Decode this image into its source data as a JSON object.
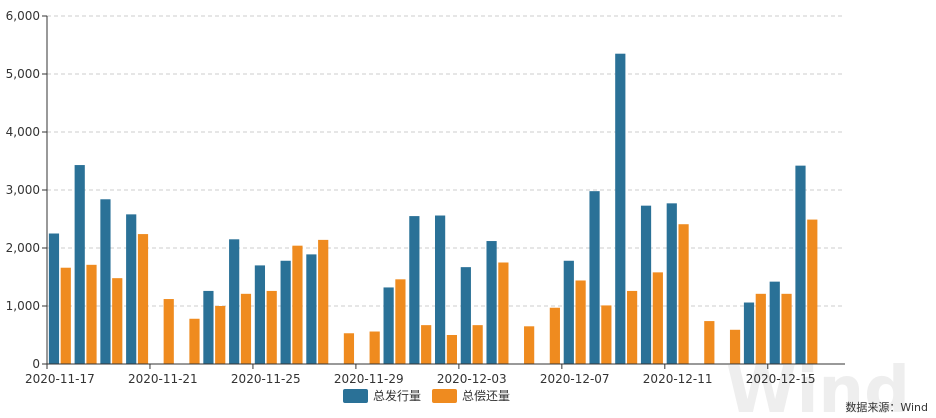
{
  "chart_data": {
    "type": "bar",
    "categories": [
      "2020-11-17",
      "2020-11-18",
      "2020-11-19",
      "2020-11-20",
      "2020-11-21",
      "2020-11-22",
      "2020-11-23",
      "2020-11-24",
      "2020-11-25",
      "2020-11-26",
      "2020-11-27",
      "2020-11-28",
      "2020-11-29",
      "2020-11-30",
      "2020-12-01",
      "2020-12-02",
      "2020-12-03",
      "2020-12-04",
      "2020-12-05",
      "2020-12-06",
      "2020-12-07",
      "2020-12-08",
      "2020-12-09",
      "2020-12-10",
      "2020-12-11",
      "2020-12-12",
      "2020-12-13",
      "2020-12-14",
      "2020-12-15",
      "2020-12-16",
      "2020-12-17"
    ],
    "x_tick_labels": [
      "2020-11-17",
      "2020-11-21",
      "2020-11-25",
      "2020-11-29",
      "2020-12-03",
      "2020-12-07",
      "2020-12-11",
      "2020-12-15"
    ],
    "series": [
      {
        "name": "总发行量",
        "color": "#2a7197",
        "values": [
          2250,
          3430,
          2840,
          2580,
          0,
          0,
          1260,
          2150,
          1700,
          1780,
          1890,
          0,
          0,
          1320,
          2550,
          2560,
          1670,
          2120,
          0,
          0,
          1780,
          2980,
          5350,
          2730,
          2770,
          0,
          0,
          1060,
          1420,
          3420,
          0
        ]
      },
      {
        "name": "总偿还量",
        "color": "#ef8b1f",
        "values": [
          1660,
          1710,
          1480,
          2240,
          1120,
          780,
          1000,
          1210,
          1260,
          2040,
          2140,
          530,
          560,
          1460,
          670,
          500,
          670,
          1750,
          650,
          970,
          1440,
          1010,
          1260,
          1580,
          2410,
          740,
          590,
          1210,
          1210,
          2490,
          0
        ]
      }
    ],
    "ylim": [
      0,
      6000
    ],
    "y_ticks": [
      0,
      1000,
      2000,
      3000,
      4000,
      5000,
      6000
    ],
    "y_tick_labels": [
      "0",
      "1,000",
      "2,000",
      "3,000",
      "4,000",
      "5,000",
      "6,000"
    ],
    "grid": true,
    "legend_position": "bottom-center",
    "source": "数据来源：Wind",
    "watermark": "Wind"
  }
}
